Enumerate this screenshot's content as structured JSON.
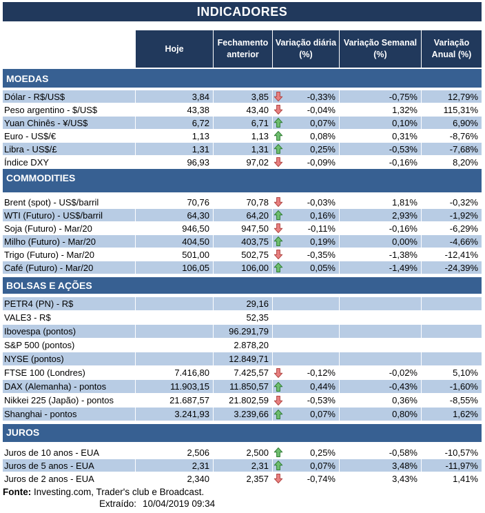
{
  "title": "INDICADORES",
  "columns": [
    "Hoje",
    "Fechamento anterior",
    "Variação diária (%)",
    "Variação Semanal (%)",
    "Variação Anual (%)"
  ],
  "sections": [
    {
      "name": "MOEDAS",
      "rows": [
        {
          "label": "Dólar - R$/US$",
          "hoje": "3,84",
          "fech": "3,85",
          "arrow": "down",
          "dia": "-0,33%",
          "sem": "-0,75%",
          "anual": "12,79%"
        },
        {
          "label": "Peso argentino - $/US$",
          "hoje": "43,38",
          "fech": "43,40",
          "arrow": "down",
          "dia": "-0,04%",
          "sem": "1,32%",
          "anual": "115,31%"
        },
        {
          "label": "Yuan Chinês - ¥/US$",
          "hoje": "6,72",
          "fech": "6,71",
          "arrow": "up",
          "dia": "0,07%",
          "sem": "0,10%",
          "anual": "6,90%"
        },
        {
          "label": "Euro - US$/€",
          "hoje": "1,13",
          "fech": "1,13",
          "arrow": "up",
          "dia": "0,08%",
          "sem": "0,31%",
          "anual": "-8,76%"
        },
        {
          "label": "Libra - US$/£",
          "hoje": "1,31",
          "fech": "1,31",
          "arrow": "up",
          "dia": "0,25%",
          "sem": "-0,53%",
          "anual": "-7,68%"
        },
        {
          "label": "Índice DXY",
          "hoje": "96,93",
          "fech": "97,02",
          "arrow": "down",
          "dia": "-0,09%",
          "sem": "-0,16%",
          "anual": "8,20%"
        }
      ]
    },
    {
      "name": "COMMODITIES",
      "rows": [
        {
          "label": "Brent (spot) - US$/barril",
          "hoje": "70,76",
          "fech": "70,78",
          "arrow": "down",
          "dia": "-0,03%",
          "sem": "1,81%",
          "anual": "-0,32%"
        },
        {
          "label": "WTI (Futuro) - US$/barril",
          "hoje": "64,30",
          "fech": "64,20",
          "arrow": "up",
          "dia": "0,16%",
          "sem": "2,93%",
          "anual": "-1,92%"
        },
        {
          "label": "Soja (Futuro) - Mar/20",
          "hoje": "946,50",
          "fech": "947,50",
          "arrow": "down",
          "dia": "-0,11%",
          "sem": "-0,16%",
          "anual": "-6,29%"
        },
        {
          "label": "Milho (Futuro) - Mar/20",
          "hoje": "404,50",
          "fech": "403,75",
          "arrow": "up",
          "dia": "0,19%",
          "sem": "0,00%",
          "anual": "-4,66%"
        },
        {
          "label": "Trigo (Futuro) - Mar/20",
          "hoje": "501,00",
          "fech": "502,75",
          "arrow": "down",
          "dia": "-0,35%",
          "sem": "-1,38%",
          "anual": "-12,41%"
        },
        {
          "label": "Café (Futuro) - Mar/20",
          "hoje": "106,05",
          "fech": "106,00",
          "arrow": "up",
          "dia": "0,05%",
          "sem": "-1,49%",
          "anual": "-24,39%"
        }
      ]
    },
    {
      "name": "BOLSAS E AÇÕES",
      "rows": [
        {
          "label": "PETR4 (PN) - R$",
          "hoje": "",
          "fech": "29,16",
          "arrow": "",
          "dia": "",
          "sem": "",
          "anual": ""
        },
        {
          "label": "VALE3 - R$",
          "hoje": "",
          "fech": "52,35",
          "arrow": "",
          "dia": "",
          "sem": "",
          "anual": ""
        },
        {
          "label": "Ibovespa (pontos)",
          "hoje": "",
          "fech": "96.291,79",
          "arrow": "",
          "dia": "",
          "sem": "",
          "anual": ""
        },
        {
          "label": "S&P 500 (pontos)",
          "hoje": "",
          "fech": "2.878,20",
          "arrow": "",
          "dia": "",
          "sem": "",
          "anual": ""
        },
        {
          "label": "NYSE (pontos)",
          "hoje": "",
          "fech": "12.849,71",
          "arrow": "",
          "dia": "",
          "sem": "",
          "anual": ""
        },
        {
          "label": "FTSE 100 (Londres)",
          "hoje": "7.416,80",
          "fech": "7.425,57",
          "arrow": "down",
          "dia": "-0,12%",
          "sem": "-0,02%",
          "anual": "5,10%"
        },
        {
          "label": "DAX (Alemanha) - pontos",
          "hoje": "11.903,15",
          "fech": "11.850,57",
          "arrow": "up",
          "dia": "0,44%",
          "sem": "-0,43%",
          "anual": "-1,60%"
        },
        {
          "label": "Nikkei 225 (Japão) - pontos",
          "hoje": "21.687,57",
          "fech": "21.802,59",
          "arrow": "down",
          "dia": "-0,53%",
          "sem": "0,36%",
          "anual": "-8,55%"
        },
        {
          "label": "Shanghai - pontos",
          "hoje": "3.241,93",
          "fech": "3.239,66",
          "arrow": "up",
          "dia": "0,07%",
          "sem": "0,80%",
          "anual": "1,62%"
        }
      ]
    },
    {
      "name": "JUROS",
      "rows": [
        {
          "label": "Juros de 10 anos - EUA",
          "hoje": "2,506",
          "fech": "2,500",
          "arrow": "up",
          "dia": "0,25%",
          "sem": "-0,58%",
          "anual": "-10,57%"
        },
        {
          "label": "Juros de 5 anos - EUA",
          "hoje": "2,31",
          "fech": "2,31",
          "arrow": "up",
          "dia": "0,07%",
          "sem": "3,48%",
          "anual": "-11,97%"
        },
        {
          "label": "Juros de 2 anos - EUA",
          "hoje": "2,340",
          "fech": "2,357",
          "arrow": "down",
          "dia": "-0,74%",
          "sem": "3,43%",
          "anual": "1,41%"
        }
      ]
    }
  ],
  "footer": {
    "source_label": "Fonte:",
    "source_text": " Investing.com, Trader's club e Broadcast.",
    "extracted_label": "Extraído:",
    "extracted_value": "10/04/2019 09:34"
  },
  "colors": {
    "header_navy": "#21395C",
    "section_blue": "#376092",
    "row_light_blue": "#B8CCE4",
    "row_white": "#FFFFFF",
    "arrow_up_fill": "#6FBE6F",
    "arrow_up_stroke": "#2E7D32",
    "arrow_down_fill": "#E88080",
    "arrow_down_stroke": "#B04340"
  },
  "icons": [
    "arrow-up-icon",
    "arrow-down-icon"
  ]
}
